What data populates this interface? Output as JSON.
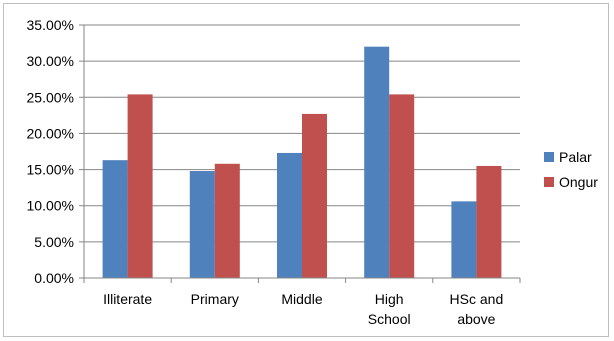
{
  "chart_data": {
    "type": "bar",
    "categories": [
      [
        "Illiterate"
      ],
      [
        "Primary"
      ],
      [
        "Middle"
      ],
      [
        "High",
        "School"
      ],
      [
        "HSc and",
        "above"
      ]
    ],
    "series": [
      {
        "name": "Palar",
        "color": "#4F81BD",
        "values": [
          16.3,
          14.8,
          17.3,
          32.0,
          10.6
        ]
      },
      {
        "name": "Ongur",
        "color": "#C0504D",
        "values": [
          25.4,
          15.8,
          22.7,
          25.4,
          15.5
        ]
      }
    ],
    "y_ticks": [
      "0.00%",
      "5.00%",
      "10.00%",
      "15.00%",
      "20.00%",
      "25.00%",
      "30.00%",
      "35.00%"
    ],
    "ylim": [
      0,
      35
    ],
    "grid": true,
    "legend_position": "right",
    "colors": {
      "axis": "#868686",
      "grid": "#868686"
    }
  }
}
